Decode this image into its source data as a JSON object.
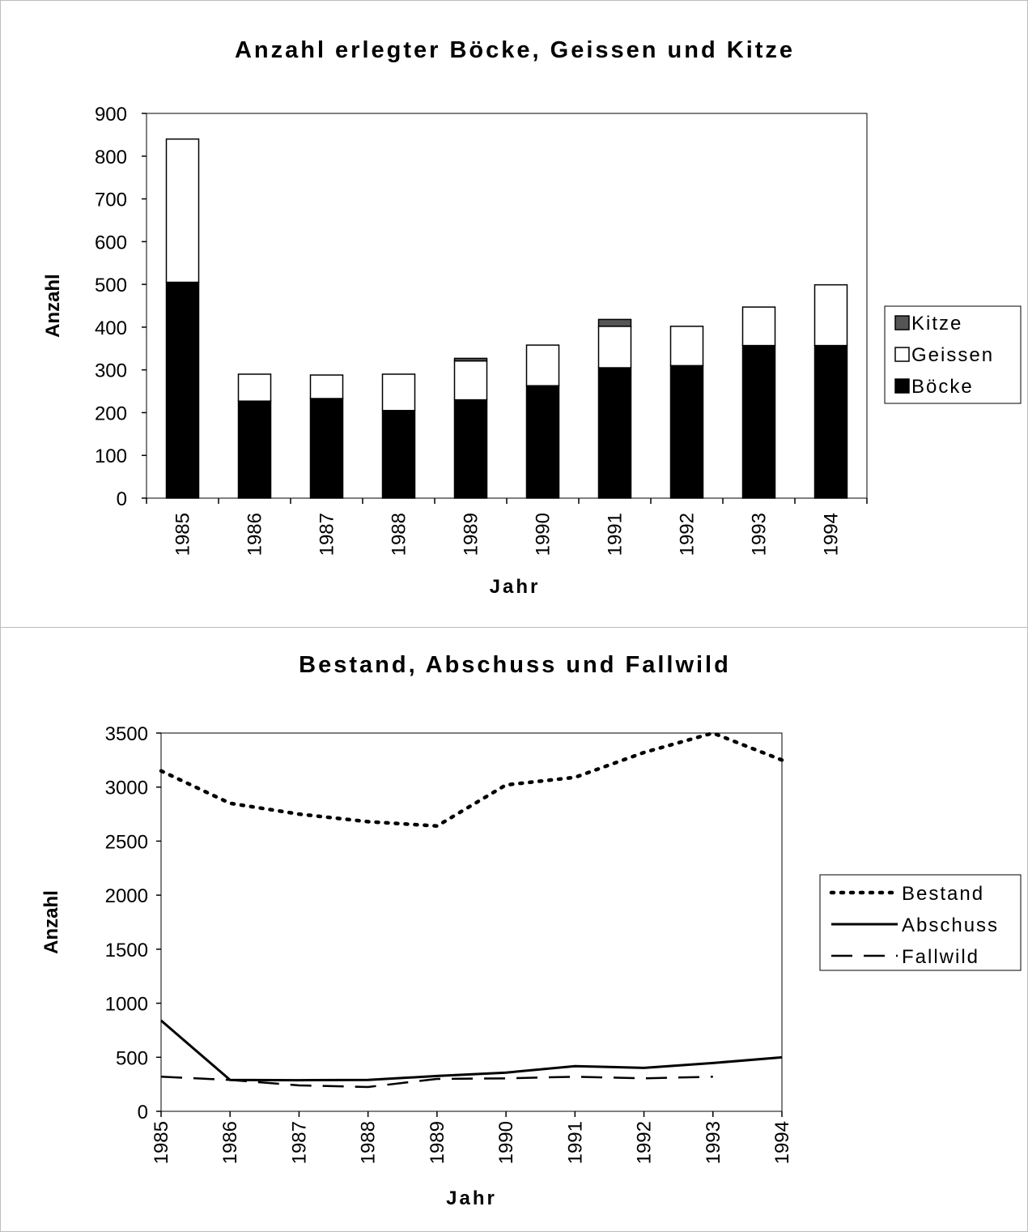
{
  "chart_data": [
    {
      "type": "bar",
      "stacked": true,
      "title": "Anzahl erlegter Böcke, Geissen und Kitze",
      "xlabel": "Jahr",
      "ylabel": "Anzahl",
      "ylim": [
        0,
        900
      ],
      "yticks": [
        0,
        100,
        200,
        300,
        400,
        500,
        600,
        700,
        800,
        900
      ],
      "categories": [
        "1985",
        "1986",
        "1987",
        "1988",
        "1989",
        "1990",
        "1991",
        "1992",
        "1993",
        "1994"
      ],
      "series": [
        {
          "name": "Böcke",
          "color": "#000000",
          "values": [
            505,
            227,
            233,
            205,
            230,
            263,
            305,
            310,
            357,
            357
          ]
        },
        {
          "name": "Geissen",
          "color": "#ffffff",
          "values": [
            335,
            63,
            55,
            85,
            91,
            95,
            97,
            92,
            90,
            142
          ]
        },
        {
          "name": "Kitze",
          "color": "#555555",
          "values": [
            0,
            0,
            0,
            0,
            6,
            0,
            16,
            0,
            0,
            0
          ]
        }
      ],
      "legend": {
        "position": "right",
        "order": [
          "Kitze",
          "Geissen",
          "Böcke"
        ]
      },
      "grid": false
    },
    {
      "type": "line",
      "title": "Bestand, Abschuss und Fallwild",
      "xlabel": "Jahr",
      "ylabel": "Anzahl",
      "ylim": [
        0,
        3500
      ],
      "yticks": [
        0,
        500,
        1000,
        1500,
        2000,
        2500,
        3000,
        3500
      ],
      "x": [
        "1985",
        "1986",
        "1987",
        "1988",
        "1989",
        "1990",
        "1991",
        "1992",
        "1993",
        "1994"
      ],
      "series": [
        {
          "name": "Bestand",
          "style": "dotted",
          "values": [
            3150,
            2850,
            2750,
            2680,
            2640,
            3020,
            3090,
            3320,
            3500,
            3250
          ]
        },
        {
          "name": "Abschuss",
          "style": "solid",
          "values": [
            840,
            290,
            288,
            290,
            327,
            358,
            418,
            402,
            447,
            499
          ]
        },
        {
          "name": "Fallwild",
          "style": "dashed",
          "values": [
            320,
            290,
            240,
            225,
            300,
            305,
            320,
            305,
            320,
            null
          ]
        }
      ],
      "legend": {
        "position": "right",
        "order": [
          "Bestand",
          "Abschuss",
          "Fallwild"
        ]
      },
      "grid": false
    }
  ]
}
